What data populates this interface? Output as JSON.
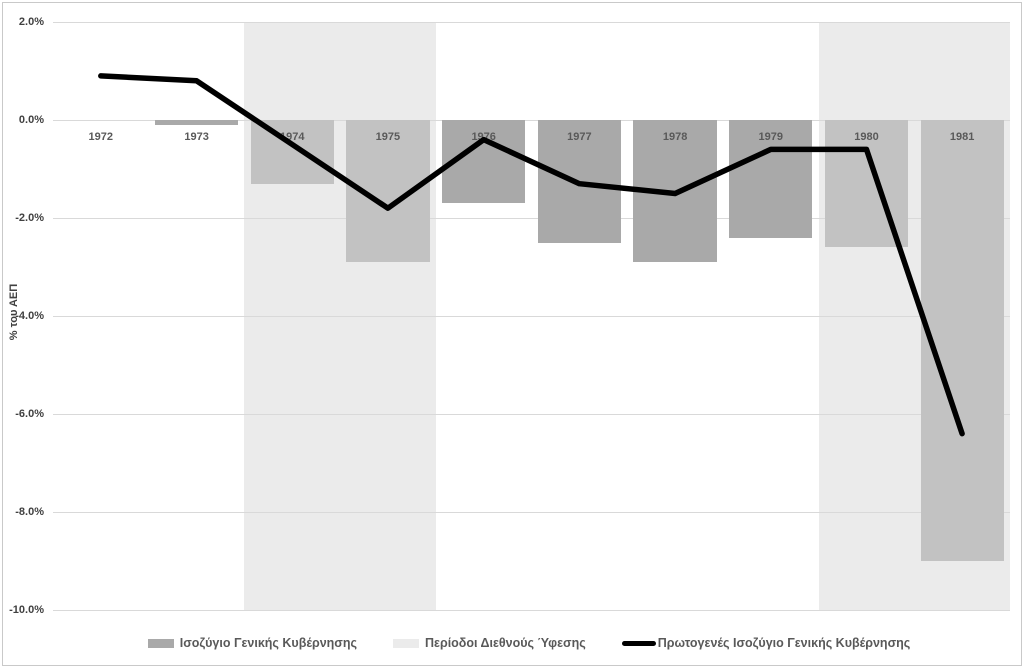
{
  "chart_data": {
    "type": "combo-bar-line",
    "title": "",
    "categories": [
      "1972",
      "1973",
      "1974",
      "1975",
      "1976",
      "1977",
      "1978",
      "1979",
      "1980",
      "1981"
    ],
    "series": [
      {
        "name": "Ισοζύγιο Γενικής Κυβέρνησης",
        "type": "bar",
        "color": "#a9a9a9",
        "color_in_recession": "#c2c2c2",
        "values": [
          0.0,
          -0.1,
          -1.3,
          -2.9,
          -1.7,
          -2.5,
          -2.9,
          -2.4,
          -2.6,
          -9.0
        ]
      },
      {
        "name": "Πρωτογενές Ισοζύγιο Γενικής Κυβέρνησης",
        "type": "line",
        "color": "#000000",
        "values": [
          0.9,
          0.8,
          -0.5,
          -1.8,
          -0.4,
          -1.3,
          -1.5,
          -0.6,
          -0.6,
          -6.4
        ]
      }
    ],
    "recession_bands": {
      "name": "Περίοδοι Διεθνούς Ύφεσης",
      "color": "#ebebeb",
      "ranges": [
        [
          "1974",
          "1975"
        ],
        [
          "1980",
          "1981"
        ]
      ]
    },
    "xlabel": "",
    "ylabel": "% του ΑΕΠ",
    "ylim": [
      -10,
      2
    ],
    "yticks": [
      2,
      0,
      -2,
      -4,
      -6,
      -8,
      -10
    ],
    "ytick_labels": [
      "2.0%",
      "0.0%",
      "-2.0%",
      "-4.0%",
      "-6.0%",
      "-8.0%",
      "-10.0%"
    ],
    "grid": true,
    "gridline_color": "#d9d9d9",
    "legend_position": "bottom"
  },
  "legend": {
    "items": [
      {
        "label": "Ισοζύγιο Γενικής Κυβέρνησης",
        "color": "#a9a9a9"
      },
      {
        "label": "Περίοδοι Διεθνούς Ύφεσης",
        "color": "#ebebeb"
      },
      {
        "label": "Πρωτογενές Ισοζύγιο Γενικής Κυβέρνησης",
        "color": "#000000"
      }
    ]
  }
}
